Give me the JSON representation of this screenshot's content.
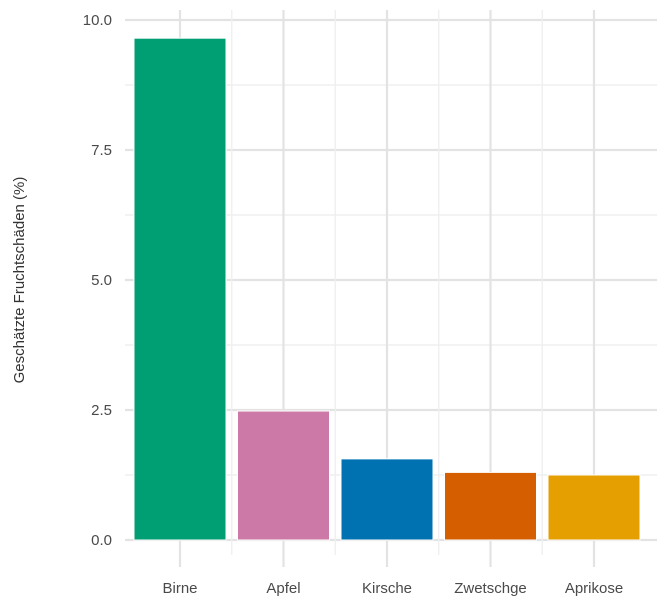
{
  "chart_data": {
    "type": "bar",
    "title": "",
    "xlabel": "",
    "ylabel": "Geschätzte Fruchtschäden (%)",
    "categories": [
      "Birne",
      "Apfel",
      "Kirsche",
      "Zwetschge",
      "Aprikose"
    ],
    "values": [
      9.65,
      2.48,
      1.56,
      1.3,
      1.25
    ],
    "bar_colors": [
      "#009E73",
      "#CC79A7",
      "#0072B2",
      "#D55E00",
      "#E69F00"
    ],
    "ylim": [
      0,
      10
    ],
    "yticks": [
      0,
      2.5,
      5,
      7.5,
      10
    ],
    "ytick_labels": [
      "0.0",
      "2.5",
      "5.0",
      "7.5",
      "10.0"
    ],
    "grid": true,
    "legend": "none"
  }
}
